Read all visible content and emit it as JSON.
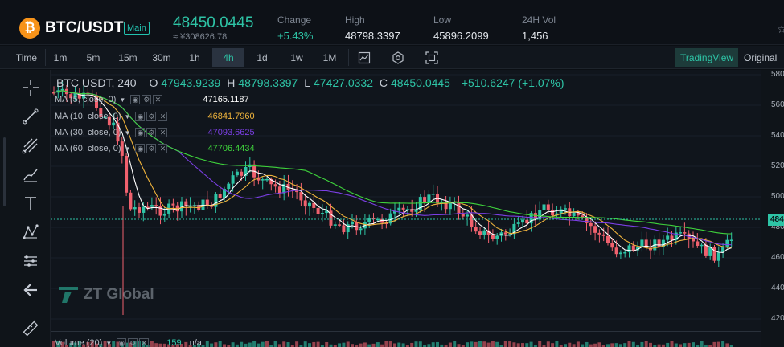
{
  "header": {
    "coin_icon": "bitcoin-icon",
    "coin_symbol": "₿",
    "pair": "BTC/USDT",
    "badge": "Main",
    "last_price": "48450.0445",
    "last_price_cny": "≈ ¥308626.78",
    "stats": [
      {
        "label": "Change",
        "value": "+5.43%",
        "up": true
      },
      {
        "label": "High",
        "value": "48798.3397",
        "up": false
      },
      {
        "label": "Low",
        "value": "45896.2099",
        "up": false
      },
      {
        "label": "24H Vol",
        "value": "1,456",
        "up": false
      }
    ]
  },
  "toolbar": {
    "time_label": "Time",
    "intervals": [
      "1m",
      "5m",
      "15m",
      "30m",
      "1h",
      "4h",
      "1d",
      "1w",
      "1M"
    ],
    "active_interval": "4h",
    "icons": [
      "chart-type-icon",
      "settings-icon",
      "fullscreen-icon"
    ],
    "views": [
      "TradingView",
      "Original"
    ],
    "active_view": "TradingView"
  },
  "left_tools": [
    "crosshair-icon",
    "trend-line-icon",
    "pitchfork-icon",
    "brush-icon",
    "text-icon",
    "pattern-icon",
    "measure-icon",
    "back-arrow-icon",
    "ruler-icon"
  ],
  "legend": {
    "symbol": "BTC USDT, 240",
    "open_label": "O",
    "open": "47943.9239",
    "high_label": "H",
    "high": "48798.3397",
    "low_label": "L",
    "low": "47427.0332",
    "close_label": "C",
    "close": "48450.0445",
    "change": "+510.6247 (+1.07%)",
    "ma": [
      {
        "label": "MA (5, close, 0)",
        "value": "47165.1187",
        "color": "#ffffff"
      },
      {
        "label": "MA (10, close, 0)",
        "value": "46841.7960",
        "color": "#f0b43c"
      },
      {
        "label": "MA (30, close, 0)",
        "value": "47093.6625",
        "color": "#7b3fe4"
      },
      {
        "label": "MA (60, close, 0)",
        "value": "47706.4434",
        "color": "#3fd43c"
      }
    ],
    "volume_label": "Volume (20)",
    "volume_value": "159",
    "volume_ma": "n/a"
  },
  "watermark": "ZT Global",
  "price_axis": {
    "labels": [
      "580",
      "560",
      "540",
      "520",
      "500",
      "480",
      "460",
      "440",
      "420"
    ],
    "current_tag": "484"
  },
  "colors": {
    "up": "#2ec4a6",
    "down": "#f0616e",
    "ma5": "#ffffff",
    "ma10": "#f0b43c",
    "ma30": "#7b3fe4",
    "ma60": "#3fd43c",
    "accent": "#22c3b0"
  }
}
